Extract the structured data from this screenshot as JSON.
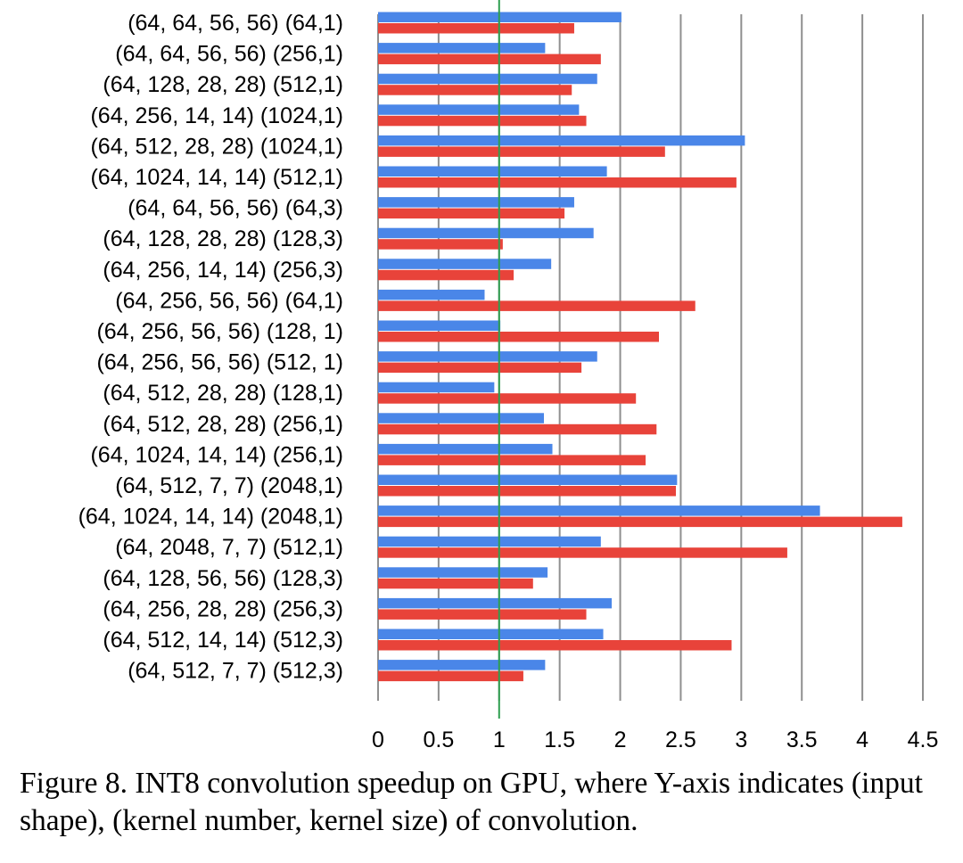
{
  "chart_data": {
    "type": "bar",
    "orientation": "horizontal",
    "title": "",
    "xlabel": "",
    "ylabel": "",
    "xlim": [
      0,
      4.5
    ],
    "x_ticks": [
      "0",
      "0.5",
      "1",
      "1.5",
      "2",
      "2.5",
      "3",
      "3.5",
      "4",
      "4.5"
    ],
    "x_tick_values": [
      0,
      0.5,
      1,
      1.5,
      2,
      2.5,
      3,
      3.5,
      4,
      4.5
    ],
    "reference_line": 1,
    "grid": "vertical",
    "legend": "none",
    "categories": [
      "(64, 64, 56, 56) (64,1)",
      "(64, 64, 56, 56) (256,1)",
      "(64, 128, 28, 28) (512,1)",
      "(64, 256, 14, 14) (1024,1)",
      "(64, 512, 28, 28) (1024,1)",
      "(64, 1024, 14, 14) (512,1)",
      "(64, 64, 56, 56) (64,3)",
      "(64, 128, 28, 28) (128,3)",
      "(64, 256, 14, 14) (256,3)",
      "(64, 256, 56, 56) (64,1)",
      "(64, 256, 56, 56) (128, 1)",
      "(64, 256, 56, 56) (512, 1)",
      "(64, 512, 28, 28) (128,1)",
      "(64, 512, 28, 28) (256,1)",
      "(64, 1024, 14, 14) (256,1)",
      "(64, 512, 7, 7) (2048,1)",
      "(64, 1024, 14, 14) (2048,1)",
      "(64, 2048, 7, 7) (512,1)",
      "(64, 128, 56, 56) (128,3)",
      "(64, 256, 28, 28) (256,3)",
      "(64, 512, 14, 14) (512,3)",
      "(64, 512, 7, 7) (512,3)"
    ],
    "series": [
      {
        "name": "blue",
        "color": "#4a86e8",
        "values": [
          2.01,
          1.38,
          1.81,
          1.66,
          3.03,
          1.89,
          1.62,
          1.78,
          1.43,
          0.88,
          1.01,
          1.81,
          0.96,
          1.37,
          1.44,
          2.47,
          3.65,
          1.84,
          1.4,
          1.93,
          1.86,
          1.38
        ]
      },
      {
        "name": "red",
        "color": "#e8433a",
        "values": [
          1.62,
          1.84,
          1.6,
          1.72,
          2.37,
          2.96,
          1.54,
          1.03,
          1.12,
          2.62,
          2.32,
          1.68,
          2.13,
          2.3,
          2.21,
          2.46,
          4.33,
          3.38,
          1.28,
          1.72,
          2.92,
          1.2
        ]
      }
    ]
  },
  "caption": "Figure 8. INT8 convolution speedup on GPU, where Y-axis indicates (input shape), (kernel number, kernel size) of convolution."
}
